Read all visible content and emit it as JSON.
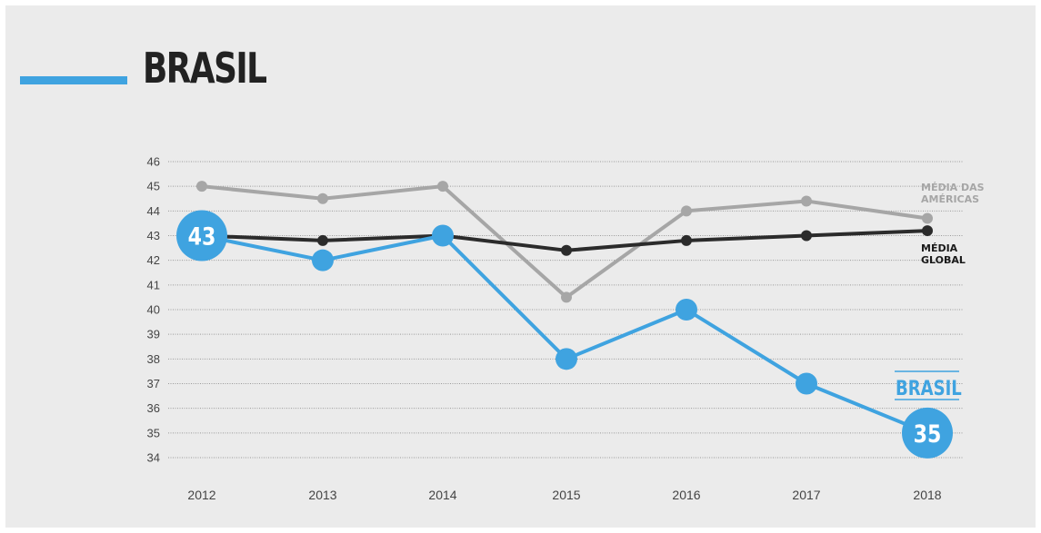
{
  "header": {
    "title": "BRASIL"
  },
  "colors": {
    "background": "#ebebeb",
    "accent_blue": "#3fa3e0",
    "gray_series": "#a6a6a6",
    "black_series": "#2b2b2b"
  },
  "chart_data": {
    "type": "line",
    "title": "BRASIL",
    "x": [
      "2012",
      "2013",
      "2014",
      "2015",
      "2016",
      "2017",
      "2018"
    ],
    "ylim": [
      34,
      46
    ],
    "yticks": [
      46,
      45,
      44,
      43,
      42,
      41,
      40,
      39,
      38,
      37,
      36,
      35,
      34
    ],
    "grid": true,
    "series": [
      {
        "name": "MÉDIA DAS AMÉRICAS",
        "label_lines": [
          "MÉDIA DAS",
          "AMÉRICAS"
        ],
        "color": "#a6a6a6",
        "values": [
          45,
          44.5,
          45,
          40.5,
          44,
          44.4,
          43.7
        ]
      },
      {
        "name": "MÉDIA GLOBAL",
        "label_lines": [
          "MÉDIA",
          "GLOBAL"
        ],
        "color": "#2b2b2b",
        "values": [
          43,
          42.8,
          43,
          42.4,
          42.8,
          43,
          43.2
        ]
      },
      {
        "name": "BRASIL",
        "label_lines": [
          "BRASIL"
        ],
        "color": "#3fa3e0",
        "values": [
          43,
          42,
          43,
          38,
          40,
          37,
          35
        ]
      }
    ],
    "annotations": [
      {
        "text": "43",
        "series": "BRASIL",
        "x": "2012",
        "value": 43
      },
      {
        "text": "35",
        "series": "BRASIL",
        "x": "2018",
        "value": 35
      }
    ]
  }
}
